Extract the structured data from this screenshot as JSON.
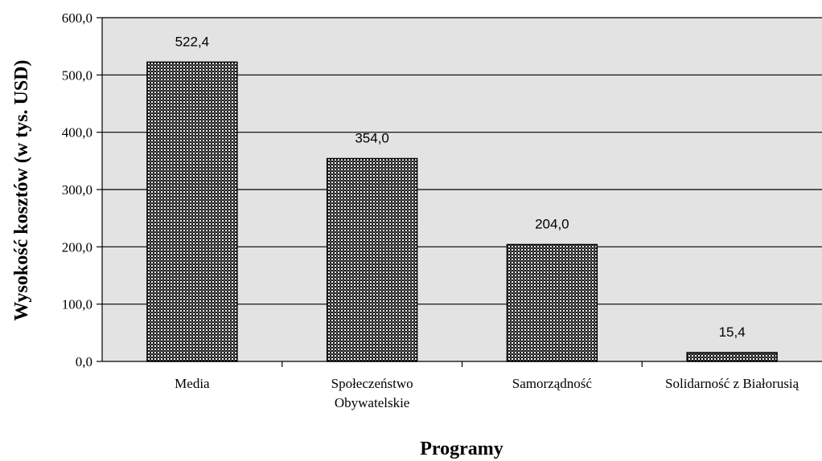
{
  "chart_data": {
    "type": "bar",
    "title": "",
    "xlabel": "Programy",
    "ylabel": "Wysokość kosztów (w tys. USD)",
    "ylim": [
      0,
      600
    ],
    "y_ticks": [
      "0,0",
      "100,0",
      "200,0",
      "300,0",
      "400,0",
      "500,0",
      "600,0"
    ],
    "categories": [
      [
        "Media"
      ],
      [
        "Społeczeństwo",
        "Obywatelskie"
      ],
      [
        "Samorządność"
      ],
      [
        "Solidarność z Białorusią"
      ]
    ],
    "values": [
      522.4,
      354.0,
      204.0,
      15.4
    ],
    "data_labels": [
      "522,4",
      "354,0",
      "204,0",
      "15,4"
    ],
    "grid": true,
    "legend": "none",
    "colors": {
      "plot_background": "#e3e3e3",
      "bar_fill_pattern": "checkered black/white",
      "gridline": "#000000"
    }
  }
}
